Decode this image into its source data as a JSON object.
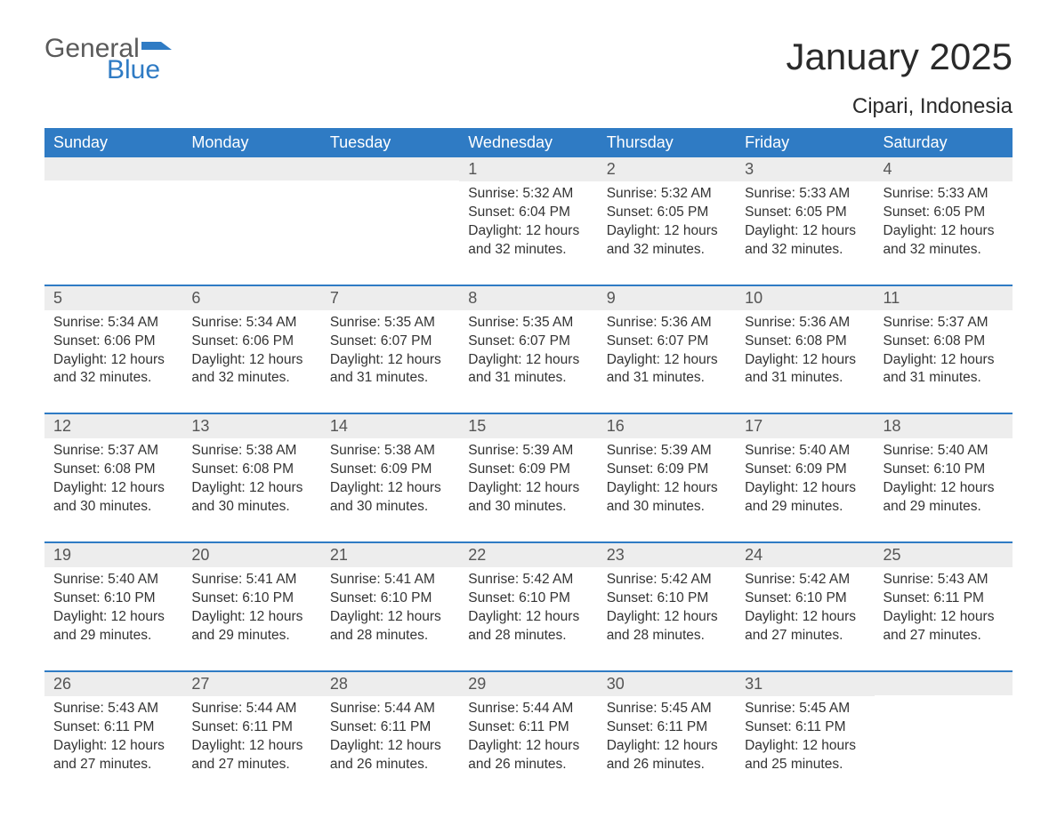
{
  "logo": {
    "general": "General",
    "blue": "Blue",
    "mark_color": "#2f7bc4"
  },
  "header": {
    "month_title": "January 2025",
    "location": "Cipari, Indonesia"
  },
  "colors": {
    "header_bg": "#2f7bc4",
    "header_text": "#ffffff",
    "daynum_bg": "#ededed",
    "daynum_text": "#555555",
    "border": "#2f7bc4",
    "body_text": "#333333",
    "page_bg": "#ffffff"
  },
  "weekdays": [
    "Sunday",
    "Monday",
    "Tuesday",
    "Wednesday",
    "Thursday",
    "Friday",
    "Saturday"
  ],
  "labels": {
    "sunrise": "Sunrise",
    "sunset": "Sunset",
    "daylight": "Daylight"
  },
  "weeks": [
    [
      null,
      null,
      null,
      {
        "day": 1,
        "sunrise": "5:32 AM",
        "sunset": "6:04 PM",
        "daylight": "12 hours and 32 minutes."
      },
      {
        "day": 2,
        "sunrise": "5:32 AM",
        "sunset": "6:05 PM",
        "daylight": "12 hours and 32 minutes."
      },
      {
        "day": 3,
        "sunrise": "5:33 AM",
        "sunset": "6:05 PM",
        "daylight": "12 hours and 32 minutes."
      },
      {
        "day": 4,
        "sunrise": "5:33 AM",
        "sunset": "6:05 PM",
        "daylight": "12 hours and 32 minutes."
      }
    ],
    [
      {
        "day": 5,
        "sunrise": "5:34 AM",
        "sunset": "6:06 PM",
        "daylight": "12 hours and 32 minutes."
      },
      {
        "day": 6,
        "sunrise": "5:34 AM",
        "sunset": "6:06 PM",
        "daylight": "12 hours and 32 minutes."
      },
      {
        "day": 7,
        "sunrise": "5:35 AM",
        "sunset": "6:07 PM",
        "daylight": "12 hours and 31 minutes."
      },
      {
        "day": 8,
        "sunrise": "5:35 AM",
        "sunset": "6:07 PM",
        "daylight": "12 hours and 31 minutes."
      },
      {
        "day": 9,
        "sunrise": "5:36 AM",
        "sunset": "6:07 PM",
        "daylight": "12 hours and 31 minutes."
      },
      {
        "day": 10,
        "sunrise": "5:36 AM",
        "sunset": "6:08 PM",
        "daylight": "12 hours and 31 minutes."
      },
      {
        "day": 11,
        "sunrise": "5:37 AM",
        "sunset": "6:08 PM",
        "daylight": "12 hours and 31 minutes."
      }
    ],
    [
      {
        "day": 12,
        "sunrise": "5:37 AM",
        "sunset": "6:08 PM",
        "daylight": "12 hours and 30 minutes."
      },
      {
        "day": 13,
        "sunrise": "5:38 AM",
        "sunset": "6:08 PM",
        "daylight": "12 hours and 30 minutes."
      },
      {
        "day": 14,
        "sunrise": "5:38 AM",
        "sunset": "6:09 PM",
        "daylight": "12 hours and 30 minutes."
      },
      {
        "day": 15,
        "sunrise": "5:39 AM",
        "sunset": "6:09 PM",
        "daylight": "12 hours and 30 minutes."
      },
      {
        "day": 16,
        "sunrise": "5:39 AM",
        "sunset": "6:09 PM",
        "daylight": "12 hours and 30 minutes."
      },
      {
        "day": 17,
        "sunrise": "5:40 AM",
        "sunset": "6:09 PM",
        "daylight": "12 hours and 29 minutes."
      },
      {
        "day": 18,
        "sunrise": "5:40 AM",
        "sunset": "6:10 PM",
        "daylight": "12 hours and 29 minutes."
      }
    ],
    [
      {
        "day": 19,
        "sunrise": "5:40 AM",
        "sunset": "6:10 PM",
        "daylight": "12 hours and 29 minutes."
      },
      {
        "day": 20,
        "sunrise": "5:41 AM",
        "sunset": "6:10 PM",
        "daylight": "12 hours and 29 minutes."
      },
      {
        "day": 21,
        "sunrise": "5:41 AM",
        "sunset": "6:10 PM",
        "daylight": "12 hours and 28 minutes."
      },
      {
        "day": 22,
        "sunrise": "5:42 AM",
        "sunset": "6:10 PM",
        "daylight": "12 hours and 28 minutes."
      },
      {
        "day": 23,
        "sunrise": "5:42 AM",
        "sunset": "6:10 PM",
        "daylight": "12 hours and 28 minutes."
      },
      {
        "day": 24,
        "sunrise": "5:42 AM",
        "sunset": "6:10 PM",
        "daylight": "12 hours and 27 minutes."
      },
      {
        "day": 25,
        "sunrise": "5:43 AM",
        "sunset": "6:11 PM",
        "daylight": "12 hours and 27 minutes."
      }
    ],
    [
      {
        "day": 26,
        "sunrise": "5:43 AM",
        "sunset": "6:11 PM",
        "daylight": "12 hours and 27 minutes."
      },
      {
        "day": 27,
        "sunrise": "5:44 AM",
        "sunset": "6:11 PM",
        "daylight": "12 hours and 27 minutes."
      },
      {
        "day": 28,
        "sunrise": "5:44 AM",
        "sunset": "6:11 PM",
        "daylight": "12 hours and 26 minutes."
      },
      {
        "day": 29,
        "sunrise": "5:44 AM",
        "sunset": "6:11 PM",
        "daylight": "12 hours and 26 minutes."
      },
      {
        "day": 30,
        "sunrise": "5:45 AM",
        "sunset": "6:11 PM",
        "daylight": "12 hours and 26 minutes."
      },
      {
        "day": 31,
        "sunrise": "5:45 AM",
        "sunset": "6:11 PM",
        "daylight": "12 hours and 25 minutes."
      },
      null
    ]
  ]
}
